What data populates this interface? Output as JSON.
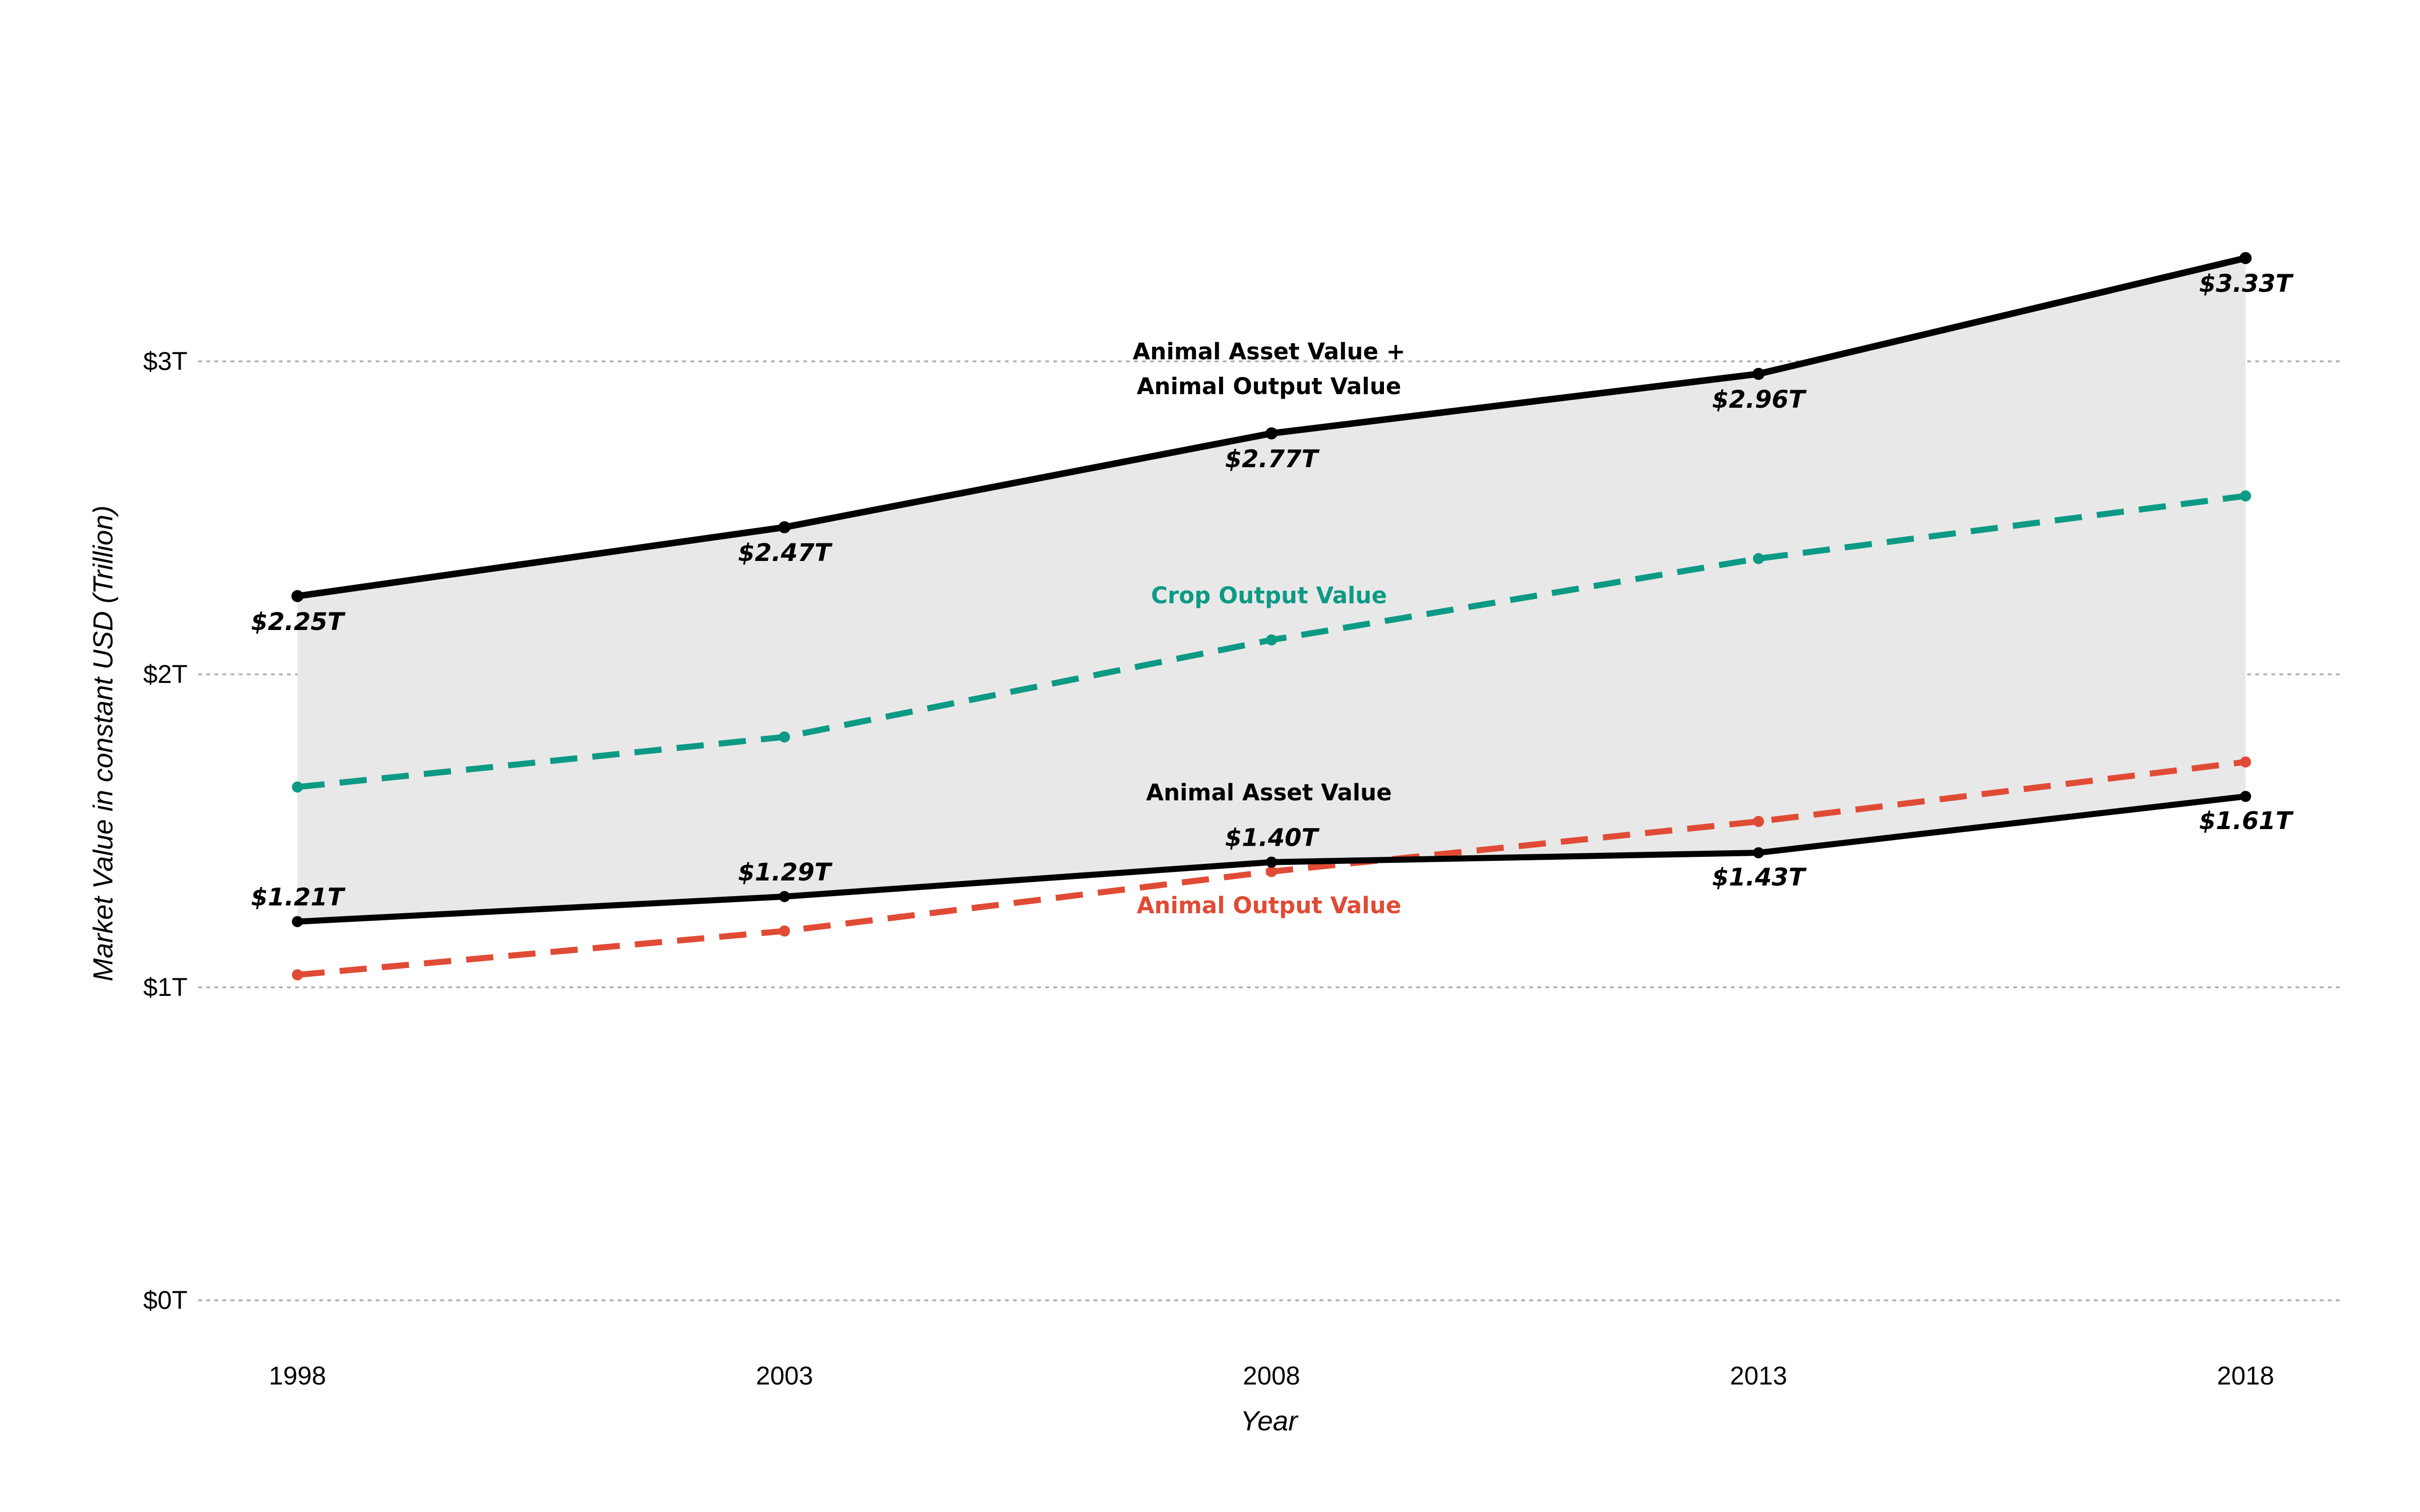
{
  "chart_data": {
    "type": "line",
    "title": "",
    "xlabel": "Year",
    "ylabel": "Market Value in constant USD (Trillion)",
    "x": [
      1998,
      2003,
      2008,
      2013,
      2018
    ],
    "x_tick_labels": [
      "1998",
      "2003",
      "2008",
      "2013",
      "2018"
    ],
    "ylim": [
      0,
      3.5
    ],
    "y_ticks": [
      0,
      1,
      2,
      3
    ],
    "y_tick_labels": [
      "$0T",
      "$1T",
      "$2T",
      "$3T"
    ],
    "grid": "horizontal dotted",
    "shaded_band": "between Animal Asset Value and Animal Asset Value + Animal Output Value",
    "series": [
      {
        "name": "Animal Asset Value + Animal Output Value",
        "label_lines": [
          "Animal Asset Value +",
          "Animal Output Value"
        ],
        "values": [
          2.25,
          2.47,
          2.77,
          2.96,
          3.33
        ],
        "data_labels": [
          "$2.25T",
          "$2.47T",
          "$2.77T",
          "$2.96T",
          "$3.33T"
        ],
        "color": "#000000",
        "style": "solid"
      },
      {
        "name": "Crop Output Value",
        "label_lines": [
          "Crop Output Value"
        ],
        "values": [
          1.64,
          1.8,
          2.11,
          2.37,
          2.57
        ],
        "color": "#0d9a85",
        "style": "dashed"
      },
      {
        "name": "Animal Asset Value",
        "label_lines": [
          "Animal Asset Value"
        ],
        "values": [
          1.21,
          1.29,
          1.4,
          1.43,
          1.61
        ],
        "data_labels": [
          "$1.21T",
          "$1.29T",
          "$1.40T",
          "$1.43T",
          "$1.61T"
        ],
        "color": "#000000",
        "style": "solid"
      },
      {
        "name": "Animal Output Value",
        "label_lines": [
          "Animal Output Value"
        ],
        "values": [
          1.04,
          1.18,
          1.37,
          1.53,
          1.72
        ],
        "color": "#e04b36",
        "style": "dashed"
      }
    ]
  },
  "colors": {
    "band_fill": "#e8e8e8",
    "grid": "#b4b4b4",
    "total": "#000000",
    "crop": "#0d9a85",
    "animal_asset": "#000000",
    "animal_output": "#e04b36"
  }
}
